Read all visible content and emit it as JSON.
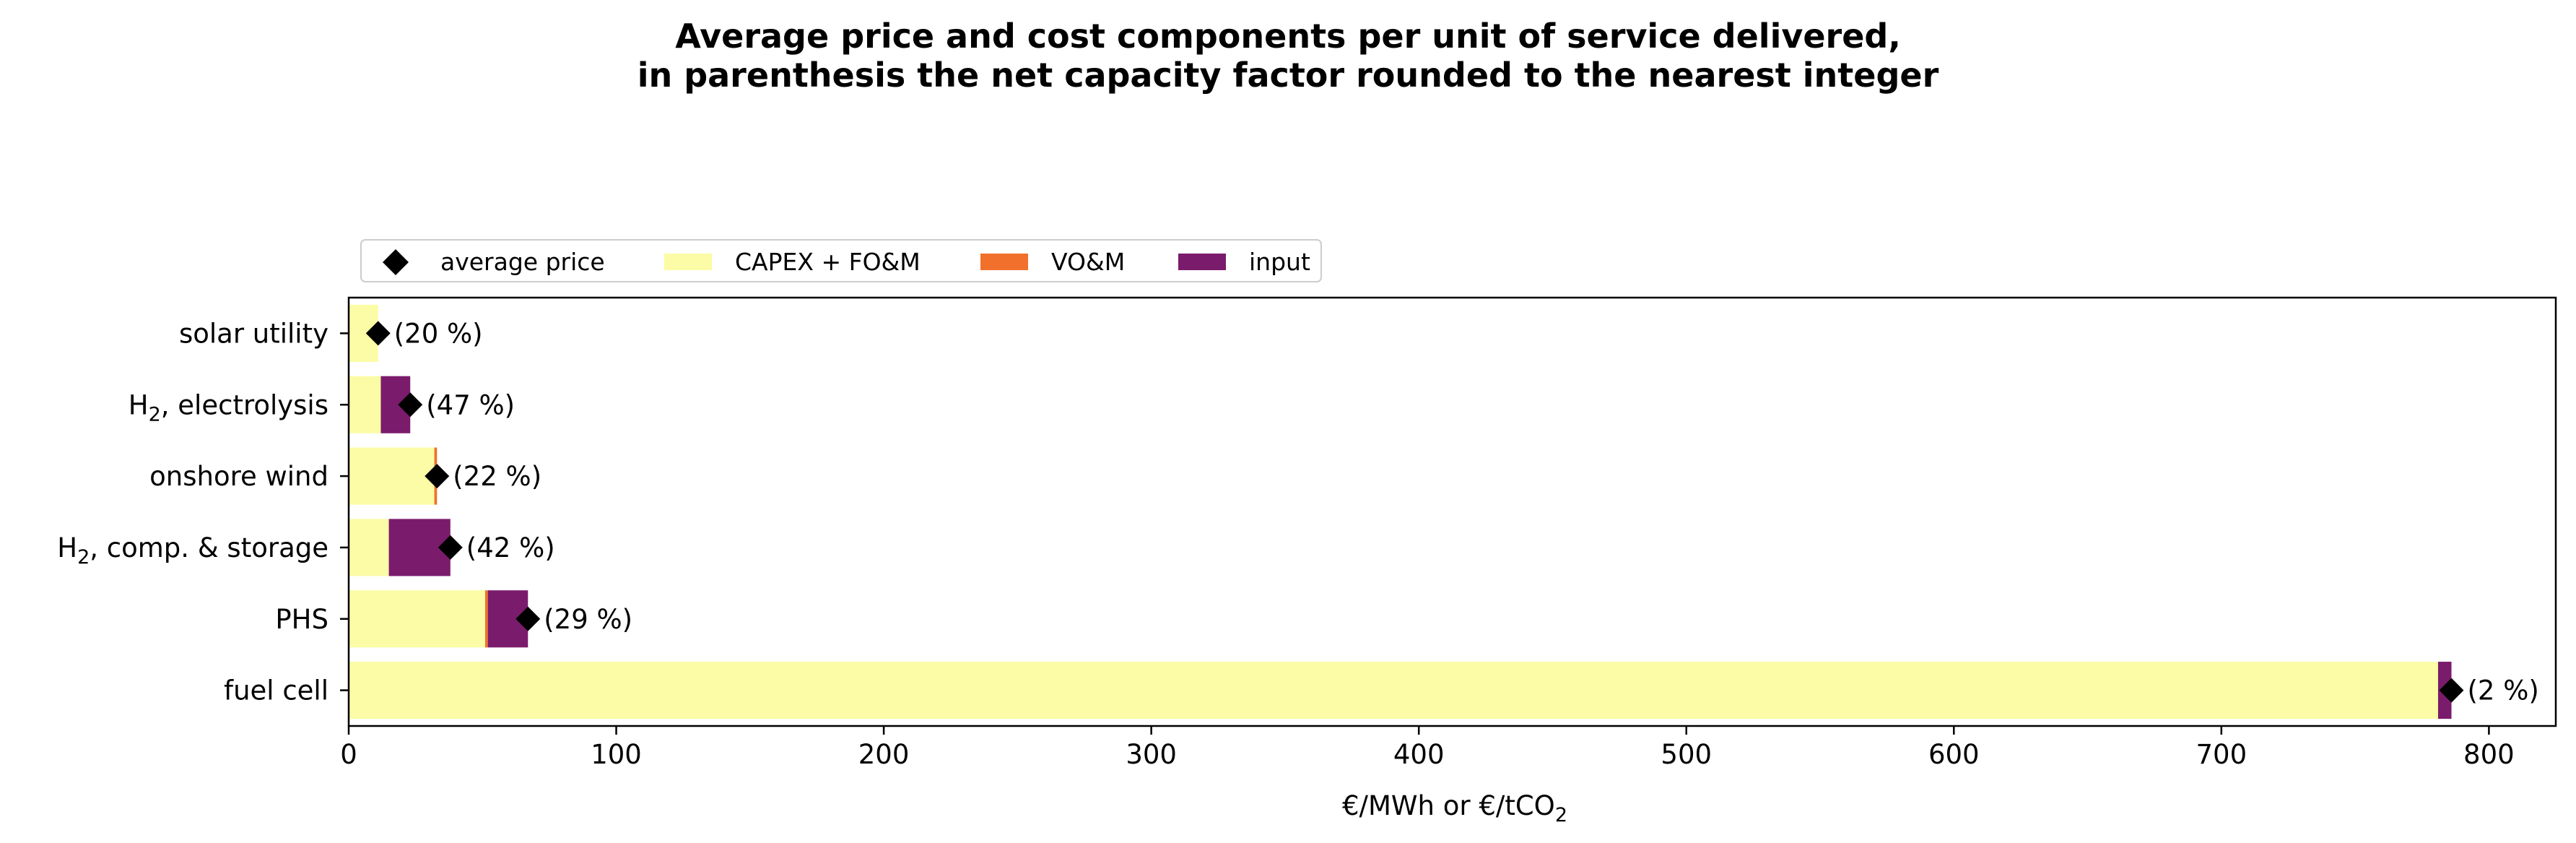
{
  "chart_data": {
    "type": "bar",
    "orientation": "horizontal",
    "stacked": true,
    "title_lines": [
      "Average price and cost components per unit of service delivered,",
      "in parenthesis the net capacity factor rounded to the nearest integer"
    ],
    "xlabel": "€/MWh or €/tCO₂",
    "ylabel": "",
    "xlim": [
      0,
      825
    ],
    "x_ticks": [
      0,
      100,
      200,
      300,
      400,
      500,
      600,
      700,
      800
    ],
    "grid": false,
    "legend_position": "top-left, above plot",
    "categories": [
      {
        "label": "solar utility",
        "label_main": "solar utility",
        "label_sub": "",
        "label_rest": ""
      },
      {
        "label": "H₂, electrolysis",
        "label_main": "H",
        "label_sub": "2",
        "label_rest": ", electrolysis"
      },
      {
        "label": "onshore wind",
        "label_main": "onshore wind",
        "label_sub": "",
        "label_rest": ""
      },
      {
        "label": "H₂, comp. & storage",
        "label_main": "H",
        "label_sub": "2",
        "label_rest": ", comp. & storage"
      },
      {
        "label": "PHS",
        "label_main": "PHS",
        "label_sub": "",
        "label_rest": ""
      },
      {
        "label": "fuel cell",
        "label_main": "fuel cell",
        "label_sub": "",
        "label_rest": ""
      }
    ],
    "series": [
      {
        "name": "CAPEX + FO&M",
        "color": "#fbfca5",
        "values": [
          11,
          12,
          32,
          15,
          51,
          781
        ]
      },
      {
        "name": "VO&M",
        "color": "#f1702b",
        "values": [
          0,
          0,
          1,
          0,
          1,
          0
        ]
      },
      {
        "name": "input",
        "color": "#7b1b6c",
        "values": [
          0,
          11,
          0,
          23,
          15,
          5
        ]
      }
    ],
    "average_price": {
      "name": "average price",
      "color": "#000000",
      "marker": "diamond",
      "values": [
        11,
        23,
        33,
        38,
        67,
        786
      ]
    },
    "capacity_factor_labels": [
      "(20 %)",
      "(47 %)",
      "(22 %)",
      "(42 %)",
      "(29 %)",
      "(2 %)"
    ]
  }
}
